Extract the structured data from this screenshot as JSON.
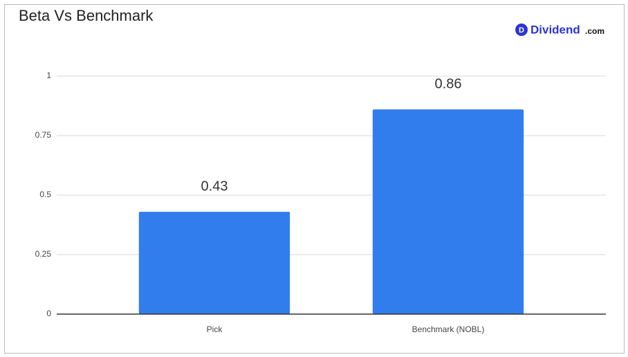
{
  "chart_data": {
    "type": "bar",
    "title": "Beta Vs Benchmark",
    "brand": {
      "icon": "D",
      "name": "Dividend",
      "suffix": ".com"
    },
    "categories": [
      "Pick",
      "Benchmark (NOBL)"
    ],
    "values": [
      0.43,
      0.86
    ],
    "color": "#317ded",
    "ylim": [
      0,
      1
    ],
    "yticks": [
      0,
      0.25,
      0.5,
      0.75,
      1
    ],
    "grid": true
  }
}
